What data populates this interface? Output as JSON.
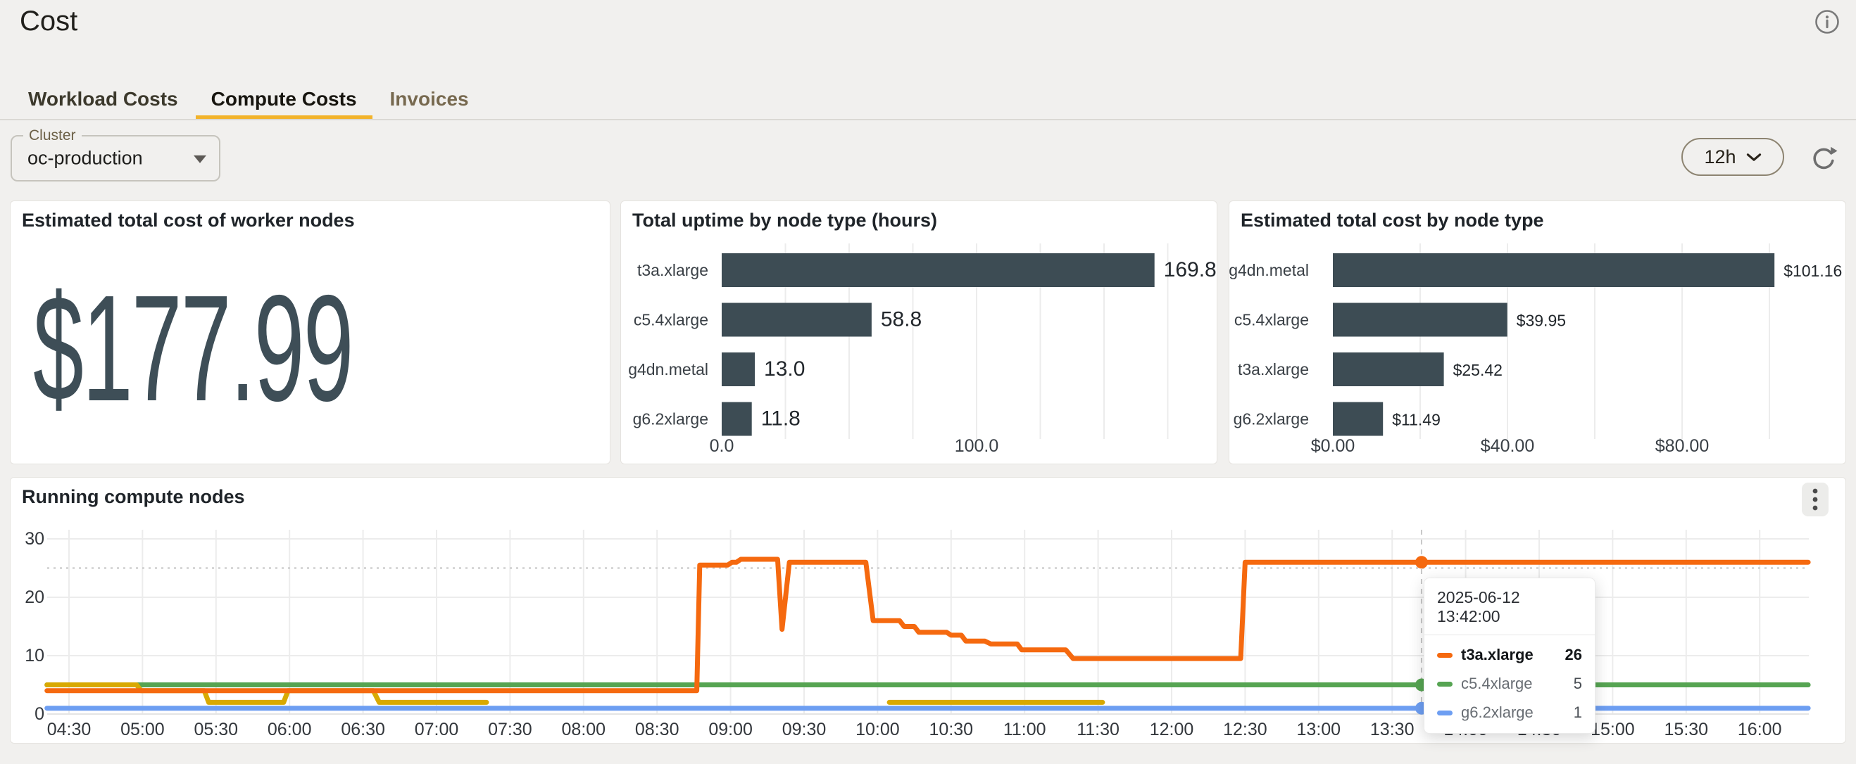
{
  "page": {
    "title": "Cost"
  },
  "tabs": {
    "items": [
      {
        "label": "Workload Costs",
        "active": false
      },
      {
        "label": "Compute Costs",
        "active": true
      },
      {
        "label": "Invoices",
        "active": false
      }
    ]
  },
  "filters": {
    "cluster": {
      "label": "Cluster",
      "value": "oc-production"
    }
  },
  "toolbar": {
    "time_range": "12h"
  },
  "colors": {
    "page_bg": "#F1F0EE",
    "accent_tab_underline": "#F2B32A",
    "bar_fill": "#3D4C54",
    "stat_text": "#3E4E57",
    "grid": "#ECECEC",
    "threshold": "#CFCFCF",
    "series": {
      "t3a.xlarge": "#F5690F",
      "c5.4xlarge": "#56A452",
      "g6.2xlarge": "#6D9EF2",
      "g4dn.metal": "#D8A902"
    }
  },
  "panels": {
    "stat": {
      "title": "Estimated total cost of worker nodes",
      "value": "$177.99"
    },
    "uptime": {
      "title": "Total uptime by node type (hours)"
    },
    "cost": {
      "title": "Estimated total cost by node type"
    },
    "running": {
      "title": "Running compute nodes"
    }
  },
  "chart_data": [
    {
      "id": "uptime",
      "type": "bar",
      "orientation": "horizontal",
      "title": "Total uptime by node type (hours)",
      "categories": [
        "t3a.xlarge",
        "c5.4xlarge",
        "g4dn.metal",
        "g6.2xlarge"
      ],
      "values": [
        169.8,
        58.8,
        13.0,
        11.8
      ],
      "value_labels": [
        "169.8",
        "58.8",
        "13.0",
        "11.8"
      ],
      "xlim": [
        0,
        176
      ],
      "grid_step": 25,
      "ticks": [
        {
          "value": 0,
          "label": "0.0"
        },
        {
          "value": 100,
          "label": "100.0"
        }
      ]
    },
    {
      "id": "cost",
      "type": "bar",
      "orientation": "horizontal",
      "title": "Estimated total cost by node type",
      "categories": [
        "g4dn.metal",
        "c5.4xlarge",
        "t3a.xlarge",
        "g6.2xlarge"
      ],
      "values": [
        101.16,
        39.95,
        25.42,
        11.49
      ],
      "value_labels": [
        "$101.16",
        "$39.95",
        "$25.42",
        "$11.49"
      ],
      "xlim": [
        0,
        114
      ],
      "grid_step": 20,
      "ticks": [
        {
          "value": 0,
          "label": "$0.00"
        },
        {
          "value": 40,
          "label": "$40.00"
        },
        {
          "value": 80,
          "label": "$80.00"
        }
      ]
    },
    {
      "id": "running",
      "type": "line",
      "title": "Running compute nodes",
      "ylim": [
        0,
        30
      ],
      "yticks": [
        0,
        10,
        20,
        30
      ],
      "threshold": 25,
      "xlim": [
        4.35,
        16.33
      ],
      "xtick_labels": [
        "04:30",
        "05:00",
        "05:30",
        "06:00",
        "06:30",
        "07:00",
        "07:30",
        "08:00",
        "08:30",
        "09:00",
        "09:30",
        "10:00",
        "10:30",
        "11:00",
        "11:30",
        "12:00",
        "12:30",
        "13:00",
        "13:30",
        "14:00",
        "14:30",
        "15:00",
        "15:30",
        "16:00"
      ],
      "series": [
        {
          "name": "c5.4xlarge",
          "color": "#56A452",
          "segments": [
            [
              [
                4.35,
                5
              ],
              [
                16.33,
                5
              ]
            ]
          ]
        },
        {
          "name": "g4dn.metal",
          "color": "#D8A902",
          "segments": [
            [
              [
                4.35,
                5
              ],
              [
                4.96,
                5
              ],
              [
                4.99,
                4
              ],
              [
                5.42,
                4
              ],
              [
                5.45,
                2
              ],
              [
                5.96,
                2
              ],
              [
                5.99,
                4
              ],
              [
                6.57,
                4
              ],
              [
                6.61,
                2
              ],
              [
                7.34,
                2
              ]
            ],
            [
              [
                10.08,
                2
              ],
              [
                11.53,
                2
              ]
            ]
          ]
        },
        {
          "name": "g6.2xlarge",
          "color": "#6D9EF2",
          "segments": [
            [
              [
                4.35,
                1
              ],
              [
                16.33,
                1
              ]
            ]
          ]
        },
        {
          "name": "t3a.xlarge",
          "color": "#F5690F",
          "segments": [
            [
              [
                4.35,
                4
              ],
              [
                8.77,
                4
              ],
              [
                8.79,
                25.5
              ],
              [
                8.98,
                25.5
              ],
              [
                9.01,
                26
              ],
              [
                9.04,
                26
              ],
              [
                9.07,
                26.5
              ],
              [
                9.32,
                26.5
              ],
              [
                9.35,
                14.5
              ],
              [
                9.4,
                26
              ],
              [
                9.92,
                26
              ],
              [
                9.97,
                16
              ],
              [
                10.15,
                16
              ],
              [
                10.18,
                15
              ],
              [
                10.25,
                15
              ],
              [
                10.28,
                14
              ],
              [
                10.47,
                14
              ],
              [
                10.5,
                13.5
              ],
              [
                10.57,
                13.5
              ],
              [
                10.6,
                12.5
              ],
              [
                10.73,
                12.5
              ],
              [
                10.77,
                12
              ],
              [
                10.95,
                12
              ],
              [
                10.98,
                11
              ],
              [
                11.28,
                11
              ],
              [
                11.33,
                9.5
              ],
              [
                12.47,
                9.5
              ],
              [
                12.5,
                26
              ],
              [
                16.33,
                26
              ]
            ]
          ]
        }
      ],
      "crosshair": {
        "t": 13.7
      },
      "markers": [
        {
          "series": "t3a.xlarge",
          "t": 13.7,
          "v": 26
        },
        {
          "series": "c5.4xlarge",
          "t": 13.7,
          "v": 5
        },
        {
          "series": "g6.2xlarge",
          "t": 13.7,
          "v": 1
        }
      ]
    }
  ],
  "tooltip": {
    "timestamp": "2025-06-12 13:42:00",
    "rows": [
      {
        "name": "t3a.xlarge",
        "value": "26",
        "color": "#F5690F",
        "bold": true
      },
      {
        "name": "c5.4xlarge",
        "value": "5",
        "color": "#56A452",
        "bold": false
      },
      {
        "name": "g6.2xlarge",
        "value": "1",
        "color": "#6D9EF2",
        "bold": false
      }
    ]
  }
}
